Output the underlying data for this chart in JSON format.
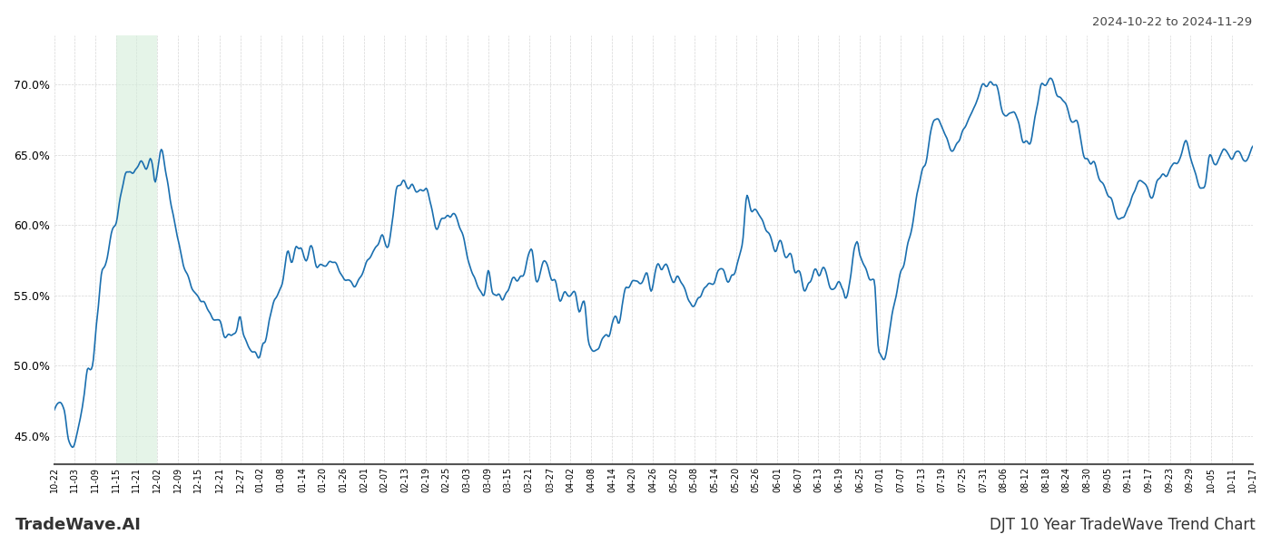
{
  "title_top_right": "2024-10-22 to 2024-11-29",
  "title_bottom_left": "TradeWave.AI",
  "title_bottom_right": "DJT 10 Year TradeWave Trend Chart",
  "line_color": "#1a6faf",
  "highlight_color": "#d4edda",
  "highlight_alpha": 0.6,
  "ylim": [
    43.0,
    73.5
  ],
  "yticks": [
    45.0,
    50.0,
    55.0,
    60.0,
    65.0,
    70.0
  ],
  "background_color": "#ffffff",
  "grid_color": "#cccccc",
  "x_labels": [
    "10-22",
    "11-03",
    "11-09",
    "11-15",
    "11-21",
    "12-02",
    "12-09",
    "12-15",
    "12-21",
    "12-27",
    "01-02",
    "01-08",
    "01-14",
    "01-20",
    "01-26",
    "02-01",
    "02-07",
    "02-13",
    "02-19",
    "02-25",
    "03-03",
    "03-09",
    "03-15",
    "03-21",
    "03-27",
    "04-02",
    "04-08",
    "04-14",
    "04-20",
    "04-26",
    "05-02",
    "05-08",
    "05-14",
    "05-20",
    "05-26",
    "06-01",
    "06-07",
    "06-13",
    "06-19",
    "06-25",
    "07-01",
    "07-07",
    "07-13",
    "07-19",
    "07-25",
    "07-31",
    "08-06",
    "08-12",
    "08-18",
    "08-24",
    "08-30",
    "09-05",
    "09-11",
    "09-17",
    "09-23",
    "09-29",
    "10-05",
    "10-11",
    "10-17"
  ],
  "highlight_x_start": "11-15",
  "highlight_x_end": "12-02",
  "waypoints": [
    [
      0.0,
      46.5
    ],
    [
      0.008,
      47.0
    ],
    [
      0.012,
      45.5
    ],
    [
      0.016,
      44.5
    ],
    [
      0.02,
      46.0
    ],
    [
      0.025,
      48.0
    ],
    [
      0.028,
      50.0
    ],
    [
      0.032,
      50.5
    ],
    [
      0.036,
      54.0
    ],
    [
      0.04,
      57.0
    ],
    [
      0.044,
      57.5
    ],
    [
      0.048,
      59.5
    ],
    [
      0.052,
      60.5
    ],
    [
      0.056,
      62.0
    ],
    [
      0.06,
      63.5
    ],
    [
      0.064,
      64.0
    ],
    [
      0.068,
      64.0
    ],
    [
      0.072,
      64.5
    ],
    [
      0.076,
      64.0
    ],
    [
      0.08,
      65.0
    ],
    [
      0.082,
      64.5
    ],
    [
      0.084,
      63.5
    ],
    [
      0.086,
      64.0
    ],
    [
      0.09,
      65.2
    ],
    [
      0.094,
      63.0
    ],
    [
      0.098,
      61.0
    ],
    [
      0.104,
      58.5
    ],
    [
      0.11,
      57.0
    ],
    [
      0.115,
      55.5
    ],
    [
      0.12,
      55.0
    ],
    [
      0.125,
      54.5
    ],
    [
      0.13,
      53.5
    ],
    [
      0.135,
      53.0
    ],
    [
      0.14,
      52.5
    ],
    [
      0.145,
      52.0
    ],
    [
      0.148,
      51.5
    ],
    [
      0.152,
      52.5
    ],
    [
      0.155,
      53.5
    ],
    [
      0.158,
      52.5
    ],
    [
      0.162,
      51.5
    ],
    [
      0.166,
      51.0
    ],
    [
      0.17,
      50.5
    ],
    [
      0.175,
      50.5
    ],
    [
      0.18,
      53.5
    ],
    [
      0.185,
      55.0
    ],
    [
      0.19,
      56.0
    ],
    [
      0.195,
      58.0
    ],
    [
      0.198,
      57.5
    ],
    [
      0.202,
      58.5
    ],
    [
      0.205,
      58.5
    ],
    [
      0.21,
      57.0
    ],
    [
      0.214,
      58.5
    ],
    [
      0.218,
      58.0
    ],
    [
      0.222,
      57.5
    ],
    [
      0.226,
      57.0
    ],
    [
      0.23,
      57.5
    ],
    [
      0.235,
      57.0
    ],
    [
      0.24,
      56.5
    ],
    [
      0.245,
      56.0
    ],
    [
      0.25,
      55.5
    ],
    [
      0.255,
      56.0
    ],
    [
      0.258,
      56.5
    ],
    [
      0.262,
      57.0
    ],
    [
      0.266,
      58.0
    ],
    [
      0.27,
      58.5
    ],
    [
      0.274,
      59.0
    ],
    [
      0.278,
      58.5
    ],
    [
      0.282,
      60.5
    ],
    [
      0.286,
      63.0
    ],
    [
      0.29,
      63.5
    ],
    [
      0.294,
      62.5
    ],
    [
      0.298,
      63.0
    ],
    [
      0.302,
      62.0
    ],
    [
      0.306,
      62.5
    ],
    [
      0.31,
      62.0
    ],
    [
      0.314,
      61.0
    ],
    [
      0.318,
      60.5
    ],
    [
      0.322,
      60.0
    ],
    [
      0.326,
      60.5
    ],
    [
      0.33,
      60.5
    ],
    [
      0.334,
      61.0
    ],
    [
      0.338,
      60.0
    ],
    [
      0.342,
      59.0
    ],
    [
      0.346,
      57.0
    ],
    [
      0.35,
      55.5
    ],
    [
      0.354,
      55.0
    ],
    [
      0.358,
      55.5
    ],
    [
      0.362,
      56.5
    ],
    [
      0.366,
      55.5
    ],
    [
      0.37,
      55.5
    ],
    [
      0.374,
      55.0
    ],
    [
      0.378,
      55.5
    ],
    [
      0.382,
      56.5
    ],
    [
      0.386,
      56.0
    ],
    [
      0.39,
      56.5
    ],
    [
      0.394,
      57.5
    ],
    [
      0.398,
      57.5
    ],
    [
      0.402,
      56.5
    ],
    [
      0.406,
      57.0
    ],
    [
      0.41,
      57.0
    ],
    [
      0.414,
      56.5
    ],
    [
      0.418,
      56.0
    ],
    [
      0.422,
      55.0
    ],
    [
      0.426,
      55.5
    ],
    [
      0.43,
      55.0
    ],
    [
      0.434,
      55.5
    ],
    [
      0.438,
      54.5
    ],
    [
      0.442,
      55.0
    ],
    [
      0.446,
      52.0
    ],
    [
      0.45,
      51.0
    ],
    [
      0.454,
      51.5
    ],
    [
      0.458,
      52.0
    ],
    [
      0.462,
      52.0
    ],
    [
      0.466,
      53.0
    ],
    [
      0.47,
      53.0
    ],
    [
      0.474,
      55.0
    ],
    [
      0.478,
      55.5
    ],
    [
      0.482,
      56.0
    ],
    [
      0.486,
      55.5
    ],
    [
      0.49,
      56.0
    ],
    [
      0.494,
      56.5
    ],
    [
      0.498,
      55.5
    ],
    [
      0.502,
      56.5
    ],
    [
      0.506,
      57.0
    ],
    [
      0.51,
      57.0
    ],
    [
      0.514,
      56.0
    ],
    [
      0.518,
      55.5
    ],
    [
      0.522,
      56.0
    ],
    [
      0.526,
      55.5
    ],
    [
      0.53,
      55.0
    ],
    [
      0.534,
      54.5
    ],
    [
      0.538,
      55.5
    ],
    [
      0.542,
      55.0
    ],
    [
      0.546,
      55.5
    ],
    [
      0.55,
      56.0
    ],
    [
      0.554,
      57.0
    ],
    [
      0.558,
      57.0
    ],
    [
      0.562,
      56.5
    ],
    [
      0.566,
      56.0
    ],
    [
      0.57,
      57.5
    ],
    [
      0.574,
      58.5
    ],
    [
      0.578,
      62.0
    ],
    [
      0.582,
      61.0
    ],
    [
      0.586,
      61.5
    ],
    [
      0.59,
      60.5
    ],
    [
      0.594,
      59.5
    ],
    [
      0.598,
      59.0
    ],
    [
      0.602,
      58.5
    ],
    [
      0.606,
      59.0
    ],
    [
      0.61,
      58.0
    ],
    [
      0.614,
      57.5
    ],
    [
      0.618,
      57.0
    ],
    [
      0.622,
      57.0
    ],
    [
      0.626,
      56.0
    ],
    [
      0.63,
      55.5
    ],
    [
      0.634,
      56.5
    ],
    [
      0.638,
      56.0
    ],
    [
      0.642,
      56.5
    ],
    [
      0.646,
      56.0
    ],
    [
      0.65,
      55.5
    ],
    [
      0.654,
      55.5
    ],
    [
      0.658,
      55.5
    ],
    [
      0.66,
      55.0
    ],
    [
      0.664,
      56.0
    ],
    [
      0.668,
      58.5
    ],
    [
      0.67,
      59.0
    ],
    [
      0.672,
      58.0
    ],
    [
      0.676,
      57.0
    ],
    [
      0.68,
      56.0
    ],
    [
      0.684,
      55.5
    ],
    [
      0.688,
      50.5
    ],
    [
      0.692,
      51.0
    ],
    [
      0.696,
      52.0
    ],
    [
      0.7,
      54.0
    ],
    [
      0.704,
      55.5
    ],
    [
      0.708,
      57.0
    ],
    [
      0.712,
      58.5
    ],
    [
      0.716,
      60.0
    ],
    [
      0.72,
      62.0
    ],
    [
      0.724,
      63.5
    ],
    [
      0.728,
      65.0
    ],
    [
      0.732,
      66.5
    ],
    [
      0.736,
      67.0
    ],
    [
      0.74,
      66.5
    ],
    [
      0.744,
      65.5
    ],
    [
      0.748,
      65.0
    ],
    [
      0.752,
      65.5
    ],
    [
      0.756,
      66.0
    ],
    [
      0.76,
      66.5
    ],
    [
      0.764,
      67.5
    ],
    [
      0.768,
      68.5
    ],
    [
      0.772,
      69.5
    ],
    [
      0.776,
      70.0
    ],
    [
      0.78,
      70.5
    ],
    [
      0.784,
      70.0
    ],
    [
      0.788,
      69.5
    ],
    [
      0.792,
      68.0
    ],
    [
      0.796,
      67.5
    ],
    [
      0.8,
      67.5
    ],
    [
      0.804,
      67.0
    ],
    [
      0.808,
      66.0
    ],
    [
      0.812,
      66.5
    ],
    [
      0.816,
      67.0
    ],
    [
      0.82,
      68.5
    ],
    [
      0.824,
      70.0
    ],
    [
      0.828,
      70.5
    ],
    [
      0.832,
      70.0
    ],
    [
      0.836,
      69.0
    ],
    [
      0.84,
      68.5
    ],
    [
      0.844,
      68.0
    ],
    [
      0.848,
      67.5
    ],
    [
      0.852,
      67.0
    ],
    [
      0.856,
      66.0
    ],
    [
      0.86,
      65.0
    ],
    [
      0.864,
      64.5
    ],
    [
      0.868,
      64.0
    ],
    [
      0.872,
      63.0
    ],
    [
      0.876,
      62.5
    ],
    [
      0.88,
      62.0
    ],
    [
      0.884,
      61.5
    ],
    [
      0.888,
      61.0
    ],
    [
      0.892,
      60.5
    ],
    [
      0.896,
      61.5
    ],
    [
      0.9,
      62.0
    ],
    [
      0.904,
      62.5
    ],
    [
      0.908,
      63.0
    ],
    [
      0.912,
      62.5
    ],
    [
      0.916,
      62.0
    ],
    [
      0.92,
      63.0
    ],
    [
      0.924,
      63.5
    ],
    [
      0.928,
      63.0
    ],
    [
      0.932,
      63.5
    ],
    [
      0.936,
      64.0
    ],
    [
      0.94,
      65.0
    ],
    [
      0.944,
      65.5
    ],
    [
      0.948,
      64.5
    ],
    [
      0.952,
      63.5
    ],
    [
      0.956,
      63.0
    ],
    [
      0.96,
      63.5
    ],
    [
      0.964,
      64.5
    ],
    [
      0.968,
      64.5
    ],
    [
      0.972,
      64.0
    ],
    [
      0.976,
      65.0
    ],
    [
      0.98,
      65.5
    ],
    [
      0.984,
      65.0
    ],
    [
      0.988,
      65.5
    ],
    [
      0.992,
      65.0
    ],
    [
      0.996,
      65.0
    ],
    [
      1.0,
      65.0
    ]
  ]
}
